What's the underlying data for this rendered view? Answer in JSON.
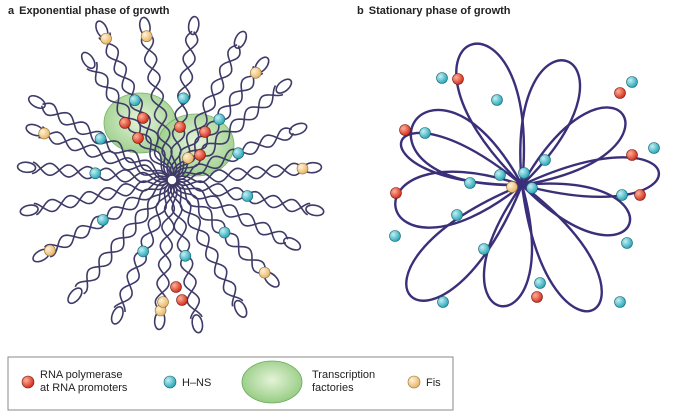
{
  "panels": [
    {
      "label": "a",
      "title": "Exponential phase of growth"
    },
    {
      "label": "b",
      "title": "Stationary phase of growth"
    }
  ],
  "legend": {
    "items": [
      {
        "label_lines": [
          "RNA polymerase",
          "at RNA promoters"
        ]
      },
      {
        "label_lines": [
          "H–NS"
        ]
      },
      {
        "label_lines": [
          "Transcription",
          "factories"
        ]
      },
      {
        "label_lines": [
          "Fis"
        ]
      }
    ]
  }
}
